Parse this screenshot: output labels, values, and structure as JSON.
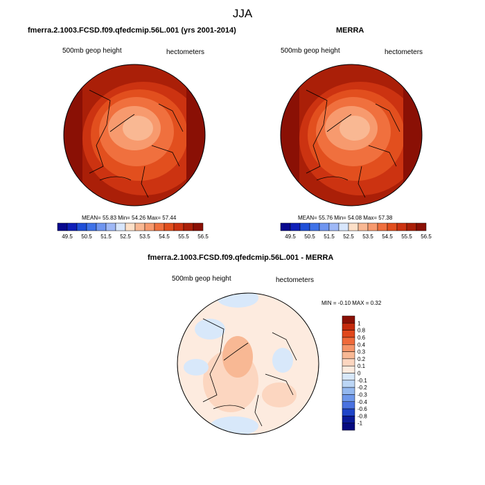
{
  "page_title": "JJA",
  "panels": {
    "model": {
      "title": "fmerra.2.1003.FCSD.f09.qfedcmip.56L.001 (yrs 2001-2014)",
      "left_label": "500mb geop height",
      "right_label": "hectometers",
      "stats": "MEAN=  55.83  Min=  54.26  Max=  57.44"
    },
    "obs": {
      "title": "MERRA",
      "left_label": "500mb geop height",
      "right_label": "hectometers",
      "stats": "MEAN=  55.76  Min=  54.08  Max=  57.38"
    },
    "diff": {
      "title": "fmerra.2.1003.FCSD.f09.qfedcmip.56L.001 - MERRA",
      "left_label": "500mb geop height",
      "right_label": "hectometers",
      "stats": "MIN =  -0.10 MAX =   0.32"
    }
  },
  "colorbar_horizontal": {
    "colors": [
      "#08088f",
      "#0f1fb8",
      "#1f4fd8",
      "#3f72e8",
      "#6f95f0",
      "#9fb8f6",
      "#d8e6fc",
      "#fde0c8",
      "#f9b893",
      "#f79a6e",
      "#f0703e",
      "#e24f1e",
      "#cc3311",
      "#aa1f08",
      "#8a1005"
    ],
    "tick_labels": [
      "49.5",
      "50.5",
      "51.5",
      "52.5",
      "53.5",
      "54.5",
      "55.5",
      "56.5"
    ]
  },
  "colorbar_vertical": {
    "colors": [
      "#8a1005",
      "#c42a0c",
      "#e0481c",
      "#ef6a3a",
      "#f59468",
      "#f8b894",
      "#fcd6c0",
      "#fdebdf",
      "#d8e8fa",
      "#bcd6f5",
      "#94b8ef",
      "#6e97ea",
      "#4a72e0",
      "#1f45c8",
      "#0a1a98",
      "#050a80"
    ],
    "tick_labels": [
      "1",
      "0.8",
      "0.6",
      "0.4",
      "0.3",
      "0.2",
      "0.1",
      "0",
      "-0.1",
      "-0.2",
      "-0.3",
      "-0.4",
      "-0.6",
      "-0.8",
      "-1"
    ]
  }
}
